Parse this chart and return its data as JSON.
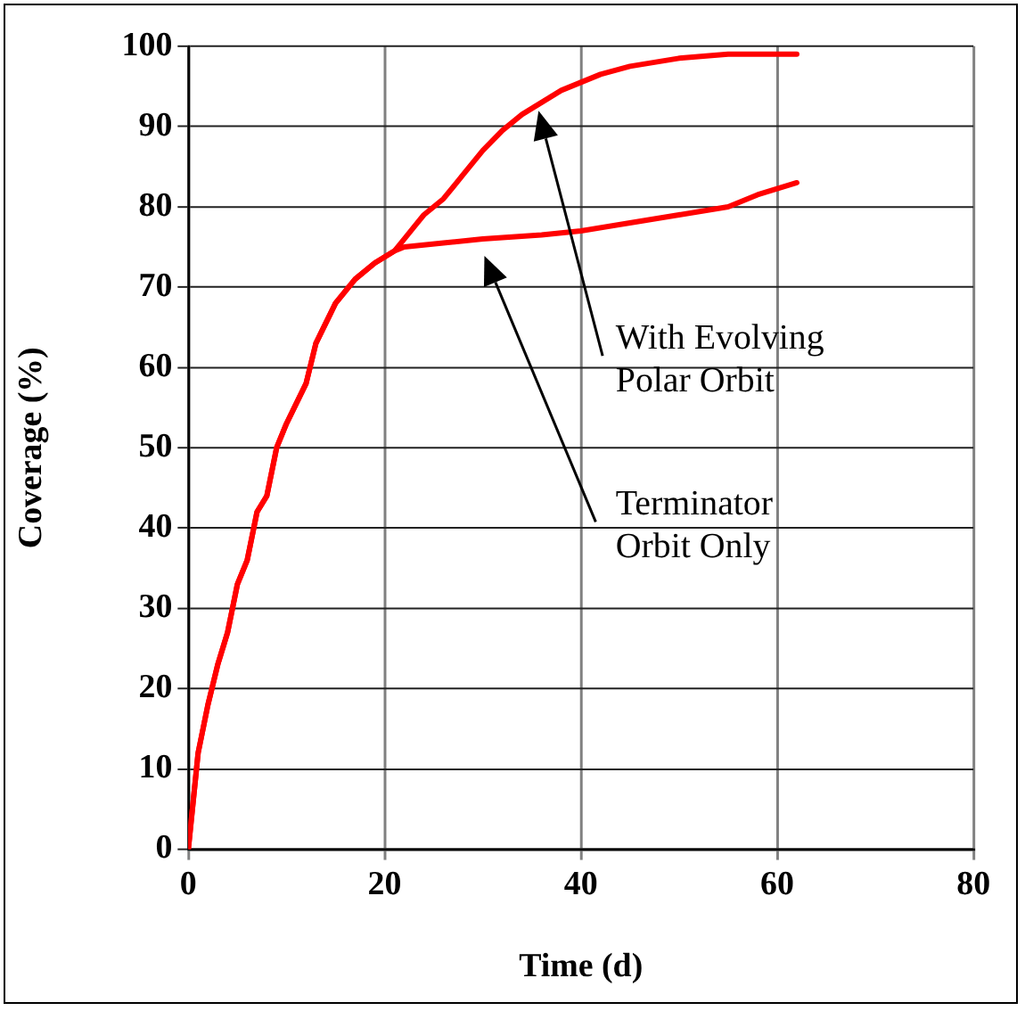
{
  "chart_data": {
    "type": "line",
    "xlabel": "Time (d)",
    "ylabel": "Coverage (%)",
    "xlim": [
      0,
      80
    ],
    "xticks": [
      0,
      20,
      40,
      60,
      80
    ],
    "ylim": [
      0,
      100
    ],
    "yticks": [
      0,
      10,
      20,
      30,
      40,
      50,
      60,
      70,
      80,
      90,
      100
    ],
    "grid": true,
    "legend": false,
    "marker": "none",
    "line_style": "solid",
    "series": [
      {
        "color": "#ff0000",
        "x": [
          0,
          1,
          2,
          3,
          4,
          5,
          6,
          7,
          8,
          9,
          10,
          12,
          13,
          15,
          17,
          19,
          21,
          22,
          24,
          26,
          28,
          30,
          32,
          34,
          36,
          38,
          40,
          42,
          45,
          50,
          55,
          62
        ],
        "values": [
          0,
          12,
          18,
          23,
          27,
          33,
          36,
          42,
          44,
          50,
          53,
          58,
          63,
          68,
          71,
          73,
          74.5,
          76,
          79,
          81,
          84,
          87,
          89.5,
          91.5,
          93,
          94.5,
          95.5,
          96.5,
          97.5,
          98.5,
          99,
          99
        ]
      },
      {
        "color": "#ff0000",
        "x": [
          0,
          1,
          2,
          3,
          4,
          5,
          6,
          7,
          8,
          9,
          10,
          12,
          13,
          15,
          17,
          19,
          21,
          22,
          26,
          30,
          36,
          40,
          45,
          50,
          55,
          58,
          62
        ],
        "values": [
          0,
          12,
          18,
          23,
          27,
          33,
          36,
          42,
          44,
          50,
          53,
          58,
          63,
          68,
          71,
          73,
          74.5,
          75,
          75.5,
          76,
          76.5,
          77,
          78,
          79,
          80,
          81.5,
          83
        ]
      }
    ],
    "annotations": [
      "With Evolving\nPolar Orbit",
      "Terminator\nOrbit Only"
    ]
  }
}
